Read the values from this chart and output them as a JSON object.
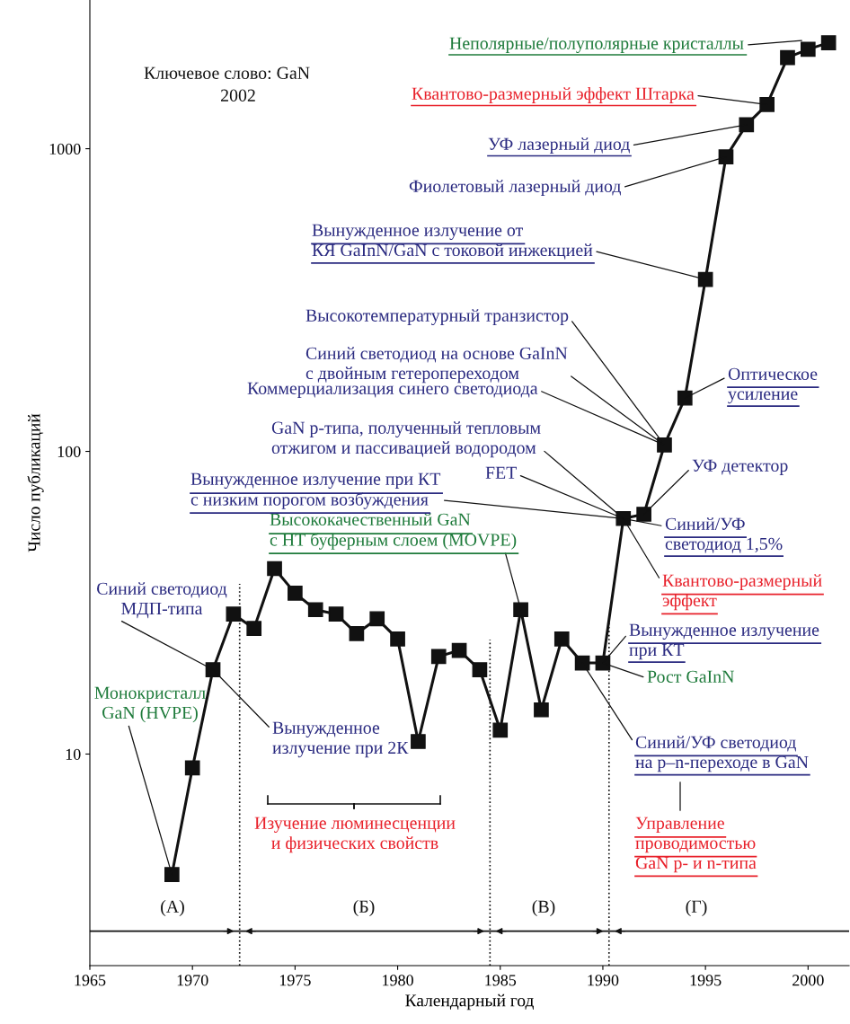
{
  "chart_data": {
    "type": "line",
    "title": "Ключевое слово: GaN\n2002",
    "xlabel": "Календарный год",
    "ylabel": "Число публикаций",
    "x": [
      1969,
      1970,
      1971,
      1972,
      1973,
      1974,
      1975,
      1976,
      1977,
      1978,
      1979,
      1980,
      1981,
      1982,
      1983,
      1984,
      1985,
      1986,
      1987,
      1988,
      1989,
      1990,
      1991,
      1992,
      1993,
      1994,
      1995,
      1996,
      1997,
      1998,
      1999,
      2000,
      2001
    ],
    "series": [
      {
        "color": "#111111",
        "values": [
          4,
          9,
          19,
          29,
          26,
          41,
          34,
          30,
          29,
          25,
          28,
          24,
          11,
          21,
          22,
          19,
          12,
          30,
          14,
          24,
          20,
          20,
          60,
          62,
          105,
          150,
          370,
          940,
          1200,
          1400,
          2000,
          2130,
          2240
        ]
      }
    ],
    "log": "y",
    "xlim": [
      1965,
      2002
    ],
    "ylim": [
      2,
      3100
    ],
    "xticks": [
      1965,
      1970,
      1975,
      1980,
      1985,
      1990,
      1995,
      2000
    ],
    "yticks": [
      10,
      100,
      1000
    ],
    "grid": false,
    "legend": false,
    "marker": "square",
    "line_style": "solid",
    "ref_lines": [
      {
        "axis": "x",
        "value": 1972.3,
        "line_style": "dotted",
        "color": "#111111"
      },
      {
        "axis": "x",
        "value": 1984.5,
        "line_style": "dotted",
        "color": "#111111"
      },
      {
        "axis": "x",
        "value": 1990.3,
        "line_style": "dotted",
        "color": "#111111"
      },
      {
        "axis": "y",
        "value": 2.6,
        "line_style": "solid",
        "color": "#111111"
      }
    ],
    "annotations": [
      "Неполярные/полуполярные кристаллы",
      {
        "text": "Квантово-размерный эффект Штарка",
        "x": 1998,
        "y": 1400
      },
      {
        "text": "УФ лазерный диод",
        "x": 1997,
        "y": 1200
      },
      {
        "text": "Фиолетовый лазерный диод",
        "x": 1996,
        "y": 940
      },
      {
        "text": "Вынужденное излучение от\nКЯ GaInN/GaN с токовой инжекцией",
        "x": 1995,
        "y": 370
      },
      {
        "text": "Высокотемпературный транзистор",
        "x": 1993,
        "y": 105
      },
      {
        "text": "Синий светодиод на основе GaInN\nс двойным гетеропереходом",
        "x": 1993,
        "y": 105
      },
      {
        "text": "Коммерциализация синего светодиода",
        "x": 1993,
        "y": 105
      },
      {
        "text": "GaN p-типа, полученный тепловым\nотжигом и пассивацией водородом",
        "x": 1991,
        "y": 60
      },
      {
        "text": "FET",
        "x": 1991,
        "y": 60
      },
      {
        "text": "Вынужденное излучение при КТ\nс низким порогом возбуждения",
        "x": 1991,
        "y": 60
      },
      {
        "text": "Высококачественный GaN\nс НТ буферным слоем (MOVPE)",
        "x": 1986,
        "y": 30
      },
      {
        "text": "Синий светодиод\nМДП-типа",
        "x": 1971,
        "y": 19
      },
      {
        "text": "Монокристалл\nGaN (HVPE)",
        "x": 1969,
        "y": 4
      },
      {
        "text": "Вынужденное\nизлучение при 2К",
        "x": 1971,
        "y": 19
      },
      {
        "text": "Оптическое\nусиление",
        "x": 1994,
        "y": 150
      },
      {
        "text": "УФ детектор",
        "x": 1992,
        "y": 62
      },
      {
        "text": "Синий/УФ\nсветодиод 1,5%",
        "x": 1991,
        "y": 60
      },
      {
        "text": "Квантово-размерный\nэффект",
        "x": 1991,
        "y": 60
      },
      {
        "text": "Вынужденное излучение\nпри КТ",
        "x": 1990,
        "y": 20
      },
      {
        "text": "Рост GaInN",
        "x": 1990,
        "y": 20
      },
      {
        "text": "Синий/УФ светодиод\nна p–n-переходе в GaN",
        "x": 1989,
        "y": 20
      },
      "Управление\nпроводимостью\nGaN p- и n-типа",
      "Изучение люминесценции\nи физических свойств",
      "(А)",
      "(Б)",
      "(В)",
      "(Г)"
    ]
  }
}
